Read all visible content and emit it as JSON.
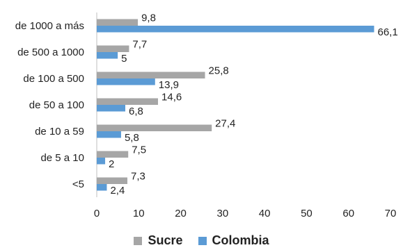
{
  "chart_data": {
    "type": "bar",
    "orientation": "horizontal",
    "categories": [
      "de 1000 a más",
      "de 500 a 1000",
      "de 100 a 500",
      "de 50 a 100",
      "de 10 a 59",
      "de 5 a 10",
      "<5"
    ],
    "series": [
      {
        "name": "Sucre",
        "color": "#a6a6a6",
        "values": [
          9.8,
          7.7,
          25.8,
          14.6,
          27.4,
          7.5,
          7.3
        ]
      },
      {
        "name": "Colombia",
        "color": "#5b9bd5",
        "values": [
          66.1,
          5,
          13.9,
          6.8,
          5.8,
          2,
          2.4
        ]
      }
    ],
    "data_labels": {
      "Sucre": [
        "9,8",
        "7,7",
        "25,8",
        "14,6",
        "27,4",
        "7,5",
        "7,3"
      ],
      "Colombia": [
        "66,1",
        "5",
        "13,9",
        "6,8",
        "5,8",
        "2",
        "2,4"
      ]
    },
    "xlim": [
      0,
      70
    ],
    "xticks": [
      0,
      10,
      20,
      30,
      40,
      50,
      60,
      70
    ],
    "legend_position": "bottom",
    "grid": false
  }
}
